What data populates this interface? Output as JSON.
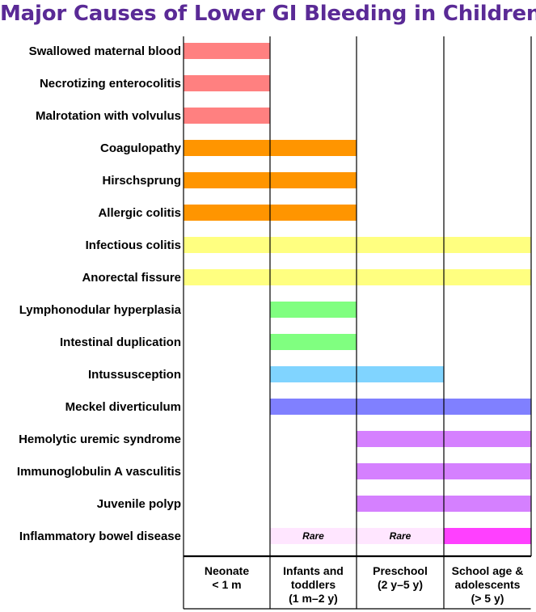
{
  "title": "Major Causes of Lower GI Bleeding in Children",
  "columns": [
    {
      "lines": [
        "Neonate",
        "< 1 m"
      ]
    },
    {
      "lines": [
        "Infants and",
        "toddlers",
        "(1 m–2 y)"
      ]
    },
    {
      "lines": [
        "Preschool",
        "(2 y–5 y)"
      ]
    },
    {
      "lines": [
        "School age &",
        "adolescents",
        "(> 5 y)"
      ]
    }
  ],
  "colors": {
    "salmon": "#ff8080",
    "orange": "#ff9500",
    "yellow": "#ffff80",
    "green": "#80ff80",
    "sky": "#80d4ff",
    "blue": "#8080ff",
    "violet": "#d580ff",
    "pale_pink": "#ffe6ff",
    "magenta": "#ff40ff",
    "title": "#5a2a96"
  },
  "rows": [
    {
      "label": "Swallowed maternal blood",
      "bars": [
        {
          "from": 0,
          "to": 1,
          "color": "salmon"
        }
      ]
    },
    {
      "label": "Necrotizing enterocolitis",
      "bars": [
        {
          "from": 0,
          "to": 1,
          "color": "salmon"
        }
      ]
    },
    {
      "label": "Malrotation with volvulus",
      "bars": [
        {
          "from": 0,
          "to": 1,
          "color": "salmon"
        }
      ]
    },
    {
      "label": "Coagulopathy",
      "bars": [
        {
          "from": 0,
          "to": 2,
          "color": "orange"
        }
      ]
    },
    {
      "label": "Hirschsprung",
      "bars": [
        {
          "from": 0,
          "to": 2,
          "color": "orange"
        }
      ]
    },
    {
      "label": "Allergic colitis",
      "bars": [
        {
          "from": 0,
          "to": 2,
          "color": "orange"
        }
      ]
    },
    {
      "label": "Infectious colitis",
      "bars": [
        {
          "from": 0,
          "to": 4,
          "color": "yellow"
        }
      ]
    },
    {
      "label": "Anorectal fissure",
      "bars": [
        {
          "from": 0,
          "to": 4,
          "color": "yellow"
        }
      ]
    },
    {
      "label": "Lymphonodular hyperplasia",
      "bars": [
        {
          "from": 1,
          "to": 2,
          "color": "green"
        }
      ]
    },
    {
      "label": "Intestinal duplication",
      "bars": [
        {
          "from": 1,
          "to": 2,
          "color": "green"
        }
      ]
    },
    {
      "label": "Intussusception",
      "bars": [
        {
          "from": 1,
          "to": 3,
          "color": "sky"
        }
      ]
    },
    {
      "label": "Meckel diverticulum",
      "bars": [
        {
          "from": 1,
          "to": 4,
          "color": "blue"
        }
      ]
    },
    {
      "label": "Hemolytic uremic syndrome",
      "bars": [
        {
          "from": 2,
          "to": 4,
          "color": "violet"
        }
      ]
    },
    {
      "label": "Immunoglobulin A vasculitis",
      "bars": [
        {
          "from": 2,
          "to": 4,
          "color": "violet"
        }
      ]
    },
    {
      "label": "Juvenile polyp",
      "bars": [
        {
          "from": 2,
          "to": 4,
          "color": "violet"
        }
      ]
    },
    {
      "label": "Inflammatory bowel disease",
      "bars": [
        {
          "from": 1,
          "to": 2,
          "color": "pale_pink",
          "text": "Rare"
        },
        {
          "from": 2,
          "to": 3,
          "color": "pale_pink",
          "text": "Rare"
        },
        {
          "from": 3,
          "to": 4,
          "color": "magenta"
        }
      ]
    }
  ]
}
